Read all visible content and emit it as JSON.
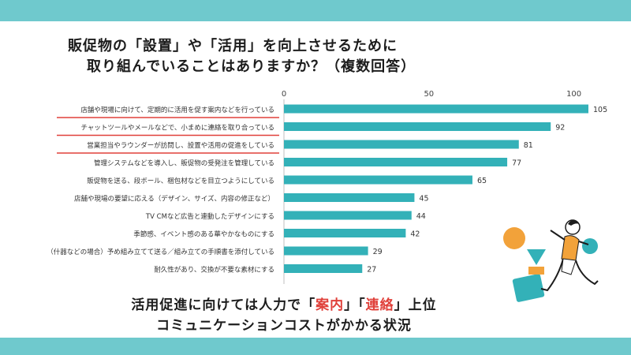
{
  "colors": {
    "band": "#6fc9cd",
    "bar": "#33b1b8",
    "accent_red": "#e0403a",
    "axis": "#bfbfbf"
  },
  "title": {
    "line1": "販促物の「設置」や「活用」を向上させるために",
    "line2": "取り組んでいることはありますか？（複数回答）"
  },
  "chart_data": {
    "type": "bar",
    "orientation": "horizontal",
    "categories": [
      "店舗や現場に向けて、定期的に活用を促す案内などを行っている",
      "チャットツールやメールなどで、小まめに連絡を取り合っている",
      "営業担当やラウンダーが訪問し、設置や活用の促進をしている",
      "管理システムなどを導入し、販促物の受発注を管理している",
      "販促物を送る、段ボール、梱包材などを目立つようにしている",
      "店舗や現場の要望に応える（デザイン、サイズ、内容の修正など）",
      "TV CMなど広告と連動したデザインにする",
      "季節感、イベント感のある華やかなものにする",
      "（什器などの場合）予め組み立てて送る／組み立ての手順書を添付している",
      "耐久性があり、交換が不要な素材にする"
    ],
    "values": [
      105,
      92,
      81,
      77,
      65,
      45,
      44,
      42,
      29,
      27
    ],
    "xlim": [
      0,
      105
    ],
    "xticks": [
      "0",
      "50",
      "100"
    ],
    "underlined_categories": [
      0,
      1,
      2
    ]
  },
  "conclusion": {
    "line1_pre": "活用促進に向けては人力で「",
    "line1_h1": "案内",
    "line1_mid": "」「",
    "line1_h2": "連絡",
    "line1_post": "」上位",
    "line2": "コミュニケーションコストがかかる状況"
  }
}
